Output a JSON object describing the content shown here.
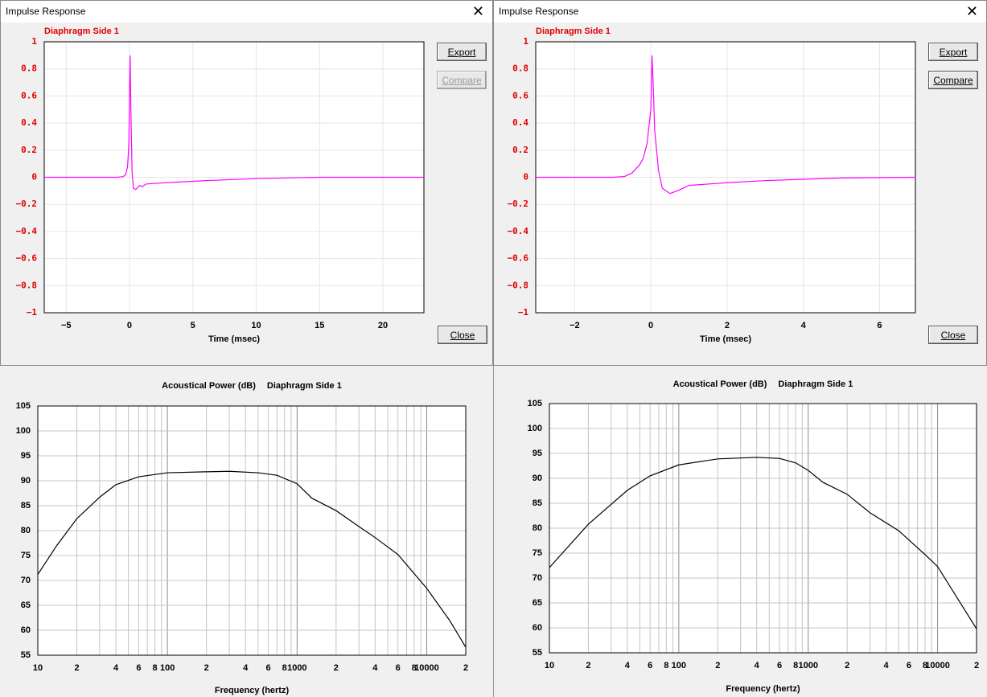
{
  "windows": [
    {
      "title": "Impulse Response",
      "buttons": [
        "Export",
        "Compare",
        "Close"
      ]
    },
    {
      "title": "Impulse Response",
      "buttons": [
        "Export",
        "Compare",
        "Close"
      ]
    }
  ],
  "chart_data": [
    {
      "type": "line",
      "xlabel": "Time (msec)",
      "x": [
        -6.73,
        -1,
        -0.5,
        -0.3,
        -0.15,
        -0.05,
        0,
        0.05,
        0.1,
        0.2,
        0.3,
        0.5,
        0.8,
        1,
        1.3,
        2,
        4,
        6,
        10,
        15,
        23.24
      ],
      "series": [
        {
          "name": "Diaphragm Side 1",
          "color": "#ff00ff",
          "values": [
            0,
            0,
            0.005,
            0.02,
            0.08,
            0.25,
            0.6,
            0.9,
            0.55,
            0.05,
            -0.08,
            -0.09,
            -0.06,
            -0.07,
            -0.05,
            -0.045,
            -0.035,
            -0.025,
            -0.01,
            0,
            0
          ]
        }
      ],
      "xlim": [
        -6.73,
        23.24
      ],
      "xticks": [
        {
          "value": -5,
          "label": "−5"
        },
        0,
        5,
        10,
        15,
        20
      ],
      "ylim": [
        -1,
        1
      ],
      "yticks": [
        {
          "value": -1,
          "label": "−1"
        },
        {
          "value": -0.8,
          "label": "−0.8"
        },
        {
          "value": -0.6,
          "label": "−0.6"
        },
        {
          "value": -0.4,
          "label": "−0.4"
        },
        {
          "value": -0.2,
          "label": "−0.2"
        },
        0,
        0.2,
        0.4,
        0.6,
        0.8,
        1
      ],
      "grid": true
    },
    {
      "type": "line",
      "xlabel": "Time (msec)",
      "x": [
        -3.02,
        -1,
        -0.7,
        -0.5,
        -0.3,
        -0.2,
        -0.1,
        0,
        0.03,
        0.06,
        0.1,
        0.2,
        0.3,
        0.5,
        0.7,
        1,
        1.5,
        2,
        3,
        4,
        5,
        6.94
      ],
      "series": [
        {
          "name": "Diaphragm Side 1",
          "color": "#ff00ff",
          "values": [
            0,
            0,
            0.005,
            0.03,
            0.09,
            0.14,
            0.25,
            0.5,
            0.9,
            0.7,
            0.35,
            0.05,
            -0.08,
            -0.12,
            -0.1,
            -0.06,
            -0.05,
            -0.04,
            -0.025,
            -0.015,
            -0.005,
            0
          ]
        }
      ],
      "xlim": [
        -3.02,
        6.94
      ],
      "xticks": [
        {
          "value": -2,
          "label": "−2"
        },
        0,
        2,
        4,
        6
      ],
      "ylim": [
        -1,
        1
      ],
      "yticks": [
        {
          "value": -1,
          "label": "−1"
        },
        {
          "value": -0.8,
          "label": "−0.8"
        },
        {
          "value": -0.6,
          "label": "−0.6"
        },
        {
          "value": -0.4,
          "label": "−0.4"
        },
        {
          "value": -0.2,
          "label": "−0.2"
        },
        0,
        0.2,
        0.4,
        0.6,
        0.8,
        1
      ],
      "grid": true
    },
    {
      "type": "line",
      "title": "Acoustical Power (dB)",
      "xlabel": "Frequency (hertz)",
      "xscale": "log",
      "x": [
        10,
        14,
        20,
        30,
        40,
        60,
        100,
        200,
        300,
        500,
        700,
        1000,
        1300,
        2000,
        3000,
        4000,
        6000,
        10000,
        15000,
        20000
      ],
      "series": [
        {
          "name": "Diaphragm Side 1",
          "color": "#000000",
          "values": [
            71.2,
            77,
            82.4,
            86.7,
            89.2,
            90.8,
            91.6,
            91.8,
            91.9,
            91.6,
            91.1,
            89.4,
            86.5,
            84.0,
            80.8,
            78.6,
            75.2,
            68.4,
            62,
            56.6
          ]
        }
      ],
      "xlim": [
        10,
        20000
      ],
      "xticks": [
        10,
        {
          "value": 20,
          "label": "2"
        },
        {
          "value": 40,
          "label": "4"
        },
        {
          "value": 60,
          "label": "6"
        },
        {
          "value": 80,
          "label": "8"
        },
        100,
        {
          "value": 200,
          "label": "2"
        },
        {
          "value": 400,
          "label": "4"
        },
        {
          "value": 600,
          "label": "6"
        },
        {
          "value": 800,
          "label": "8"
        },
        1000,
        {
          "value": 2000,
          "label": "2"
        },
        {
          "value": 4000,
          "label": "4"
        },
        {
          "value": 6000,
          "label": "6"
        },
        {
          "value": 8000,
          "label": "8"
        },
        10000,
        {
          "value": 20000,
          "label": "2"
        }
      ],
      "xminor": [
        30,
        50,
        70,
        90,
        300,
        500,
        700,
        900,
        3000,
        5000,
        7000,
        9000
      ],
      "ylim": [
        55,
        105
      ],
      "yticks": [
        55,
        60,
        65,
        70,
        75,
        80,
        85,
        90,
        95,
        100,
        105
      ],
      "grid": true
    },
    {
      "type": "line",
      "title": "Acoustical Power (dB)",
      "xlabel": "Frequency (hertz)",
      "xscale": "log",
      "x": [
        10,
        20,
        40,
        60,
        100,
        200,
        400,
        600,
        800,
        1000,
        1300,
        2000,
        3000,
        5000,
        8000,
        10000,
        20000
      ],
      "series": [
        {
          "name": "Diaphragm Side 1",
          "color": "#000000",
          "values": [
            72.1,
            80.8,
            87.6,
            90.5,
            92.7,
            93.9,
            94.2,
            94.0,
            93.1,
            91.6,
            89.2,
            86.8,
            83.1,
            79.5,
            74.7,
            72.3,
            59.8
          ]
        }
      ],
      "xlim": [
        10,
        20000
      ],
      "xticks": [
        10,
        {
          "value": 20,
          "label": "2"
        },
        {
          "value": 40,
          "label": "4"
        },
        {
          "value": 60,
          "label": "6"
        },
        {
          "value": 80,
          "label": "8"
        },
        100,
        {
          "value": 200,
          "label": "2"
        },
        {
          "value": 400,
          "label": "4"
        },
        {
          "value": 600,
          "label": "6"
        },
        {
          "value": 800,
          "label": "8"
        },
        1000,
        {
          "value": 2000,
          "label": "2"
        },
        {
          "value": 4000,
          "label": "4"
        },
        {
          "value": 6000,
          "label": "6"
        },
        {
          "value": 8000,
          "label": "8"
        },
        10000,
        {
          "value": 20000,
          "label": "2"
        }
      ],
      "xminor": [
        30,
        50,
        70,
        90,
        300,
        500,
        700,
        900,
        3000,
        5000,
        7000,
        9000
      ],
      "ylim": [
        55,
        105
      ],
      "yticks": [
        55,
        60,
        65,
        70,
        75,
        80,
        85,
        90,
        95,
        100,
        105
      ],
      "grid": true
    }
  ]
}
